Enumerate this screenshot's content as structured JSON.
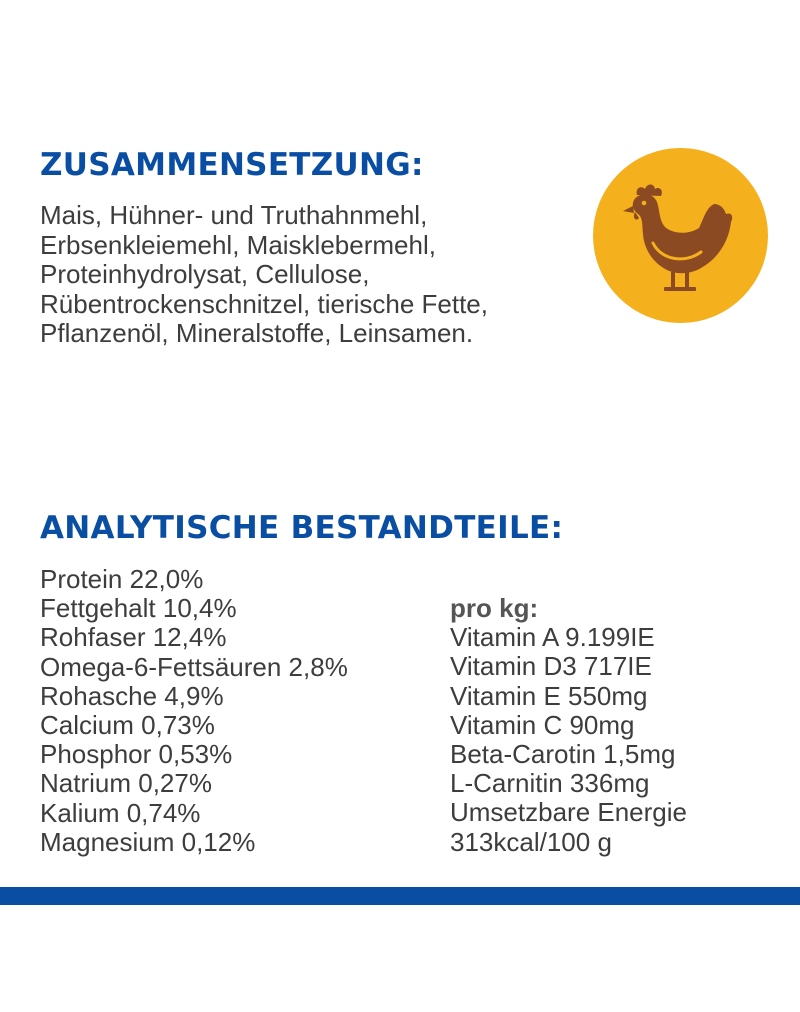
{
  "colors": {
    "heading": "#0a4ea3",
    "text": "#3d3d3d",
    "circle": "#f5b01e",
    "chicken": "#8b4a22",
    "bar": "#0a4ea3"
  },
  "composition": {
    "heading": "ZUSAMMENSETZUNG:",
    "lines": [
      "Mais, Hühner- und Truthahnmehl,",
      "Erbsenkleiemehl, Maisklebermehl,",
      "Proteinhydrolysat, Cellulose,",
      "Rübentrockenschnitzel, tierische Fette,",
      "Pflanzenöl, Mineralstoffe, Leinsamen."
    ],
    "icon": "chicken-icon"
  },
  "analysis": {
    "heading": "ANALYTISCHE BESTANDTEILE:",
    "left_items": [
      "Protein 22,0%",
      "Fettgehalt 10,4%",
      "Rohfaser 12,4%",
      "Omega-6-Fettsäuren 2,8%",
      "Rohasche 4,9%",
      "Calcium 0,73%",
      "Phosphor 0,53%",
      "Natrium 0,27%",
      "Kalium 0,74%",
      "Magnesium 0,12%"
    ],
    "per_kg_label": "pro kg:",
    "right_items": [
      "Vitamin A 9.199IE",
      "Vitamin D3 717IE",
      "Vitamin E 550mg",
      "Vitamin C 90mg",
      "Beta-Carotin 1,5mg",
      "L-Carnitin 336mg",
      "Umsetzbare Energie",
      "313kcal/100 g"
    ]
  }
}
